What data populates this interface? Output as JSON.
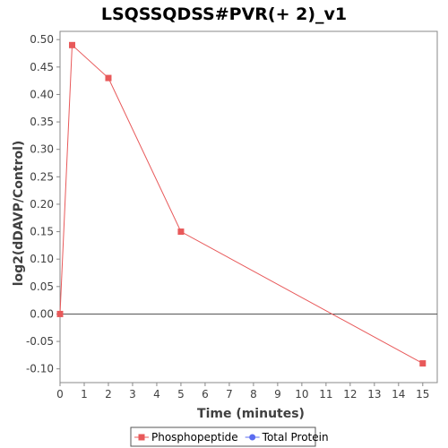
{
  "chart_data": {
    "type": "line",
    "title": "LSQSSQDSS#PVR(+ 2)_v1",
    "xlabel": "Time (minutes)",
    "ylabel": "log2(dDAVP/Control)",
    "xlim": [
      0,
      15.6
    ],
    "ylim": [
      -0.125,
      0.515
    ],
    "xticks": [
      0,
      1,
      2,
      3,
      4,
      5,
      6,
      7,
      8,
      9,
      10,
      11,
      12,
      13,
      14,
      15
    ],
    "yticks": [
      -0.1,
      -0.05,
      0.0,
      0.05,
      0.1,
      0.15,
      0.2,
      0.25,
      0.3,
      0.35,
      0.4,
      0.45,
      0.5
    ],
    "ytick_labels": [
      "-0.10",
      "-0.05",
      "0.00",
      "0.05",
      "0.10",
      "0.15",
      "0.20",
      "0.25",
      "0.30",
      "0.35",
      "0.40",
      "0.45",
      "0.50"
    ],
    "grid": false,
    "zero_line": true,
    "legend_position": "bottom",
    "series": [
      {
        "name": "Phosphopeptide",
        "color": "#e8595a",
        "marker": "square",
        "x": [
          0,
          0.5,
          2,
          5,
          15
        ],
        "y": [
          0.0,
          0.49,
          0.43,
          0.15,
          -0.09
        ]
      },
      {
        "name": "Total Protein",
        "color": "#5b6cf0",
        "marker": "circle",
        "x": [],
        "y": []
      }
    ]
  }
}
